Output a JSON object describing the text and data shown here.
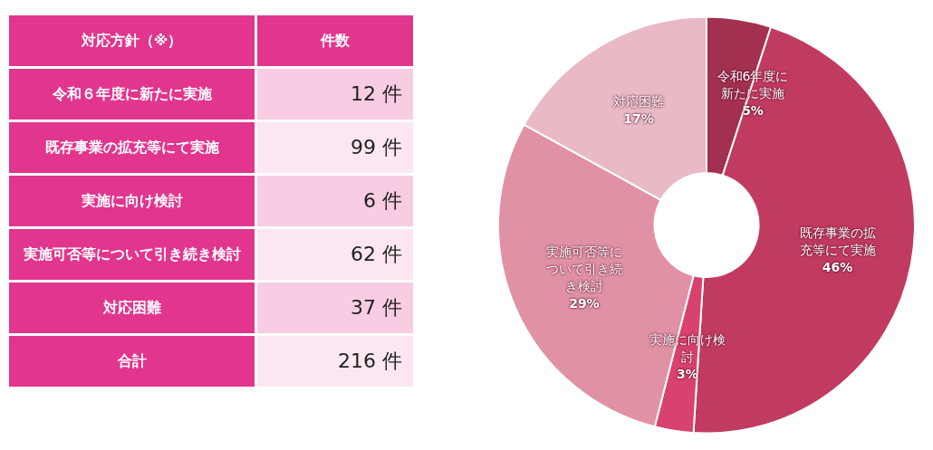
{
  "chart_data": [
    {
      "type": "other",
      "xlabel": "対応方針（※）",
      "ylabel": "件数",
      "categories": [
        "令和６年度に新たに実施",
        "既存事業の拡充等にて実施",
        "実施に向け検討",
        "実施可否等について引き続き検討",
        "対応困難",
        "合計"
      ],
      "values": [
        12,
        99,
        6,
        62,
        37,
        216
      ],
      "value_labels": [
        "12 件",
        "99 件",
        "6 件",
        "62 件",
        "37 件",
        "216 件"
      ],
      "color": "#e2358e"
    },
    {
      "type": "donut",
      "categories": [
        "令和6年度に新たに実施",
        "既存事業の拡充等にて実施",
        "実施に向け検討",
        "実施可否等について引き続き検討",
        "対応困難"
      ],
      "values": [
        5,
        46,
        3,
        29,
        17
      ],
      "value_labels": [
        "5%",
        "46%",
        "3%",
        "29%",
        "17%"
      ],
      "colors": [
        "#a3304f",
        "#c13b60",
        "#d9416f",
        "#e091a4",
        "#e9bac6"
      ],
      "legend": false
    }
  ]
}
